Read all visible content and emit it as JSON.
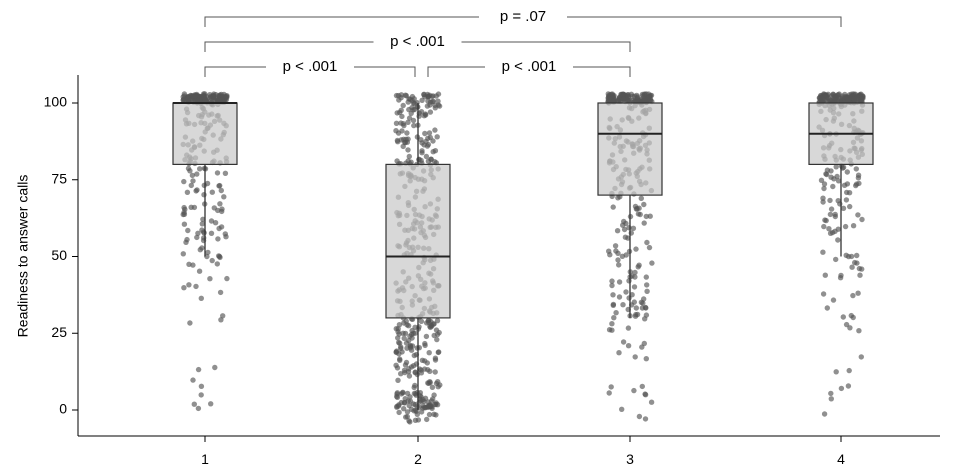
{
  "chart_data": {
    "type": "boxplot",
    "ylabel": "Readiness to answer calls",
    "xlabel": "",
    "ylim": [
      -8,
      110
    ],
    "categories": [
      "1",
      "2",
      "3",
      "4"
    ],
    "y_ticks": [
      "0",
      "25",
      "50",
      "75",
      "100"
    ],
    "y_tick_values": [
      0,
      25,
      50,
      75,
      100
    ],
    "boxes": [
      {
        "category": "1",
        "q1": 80,
        "median": 100,
        "q3": 100,
        "whisker_low": 50,
        "whisker_high": 100
      },
      {
        "category": "2",
        "q1": 30,
        "median": 50,
        "q3": 80,
        "whisker_low": 0,
        "whisker_high": 100
      },
      {
        "category": "3",
        "q1": 70,
        "median": 90,
        "q3": 100,
        "whisker_low": 30,
        "whisker_high": 100
      },
      {
        "category": "4",
        "q1": 80,
        "median": 90,
        "q3": 100,
        "whisker_low": 50,
        "whisker_high": 100
      }
    ],
    "comparisons": [
      {
        "from": "1",
        "to": "2",
        "label": "p < .001"
      },
      {
        "from": "2",
        "to": "3",
        "label": "p < .001"
      },
      {
        "from": "1",
        "to": "3",
        "label": "p < .001"
      },
      {
        "from": "1",
        "to": "4",
        "label": "p = .07"
      }
    ],
    "colors": {
      "box_fill": "#c8c8c8",
      "box_stroke": "#333333",
      "point": "#555555"
    }
  }
}
